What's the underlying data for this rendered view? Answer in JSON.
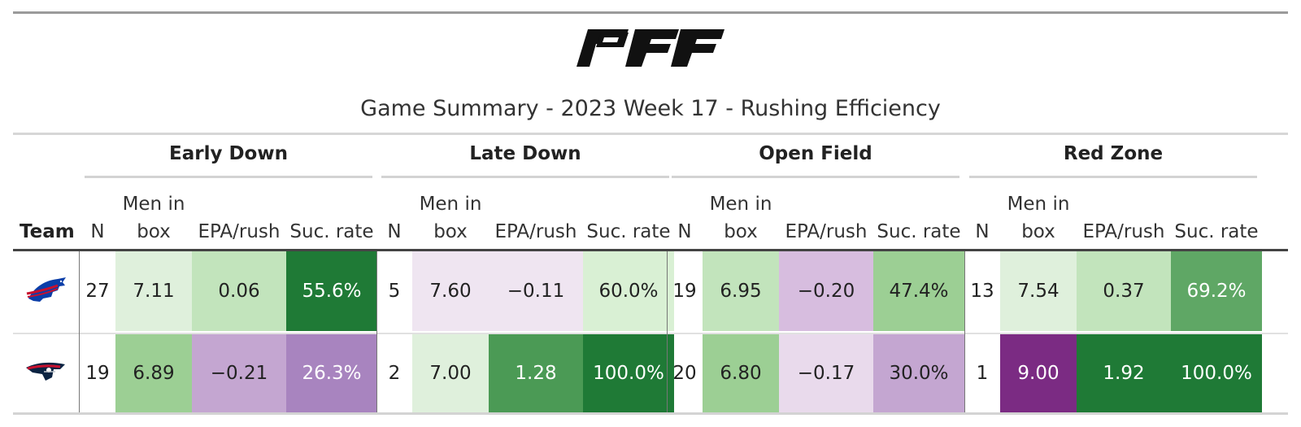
{
  "title": "Game Summary - 2023 Week 17 - Rushing Efficiency",
  "logo": {
    "name": "PFF",
    "color": "#111111"
  },
  "header": {
    "team_label": "Team",
    "groups": [
      "Early Down",
      "Late Down",
      "Open Field",
      "Red Zone"
    ],
    "columns": {
      "n": "N",
      "men_in_box_line1": "Men in",
      "men_in_box_line2": "box",
      "epa": "EPA/rush",
      "success": "Suc. rate"
    }
  },
  "rows": [
    {
      "team_logo": "buffalo-bills-logo-icon",
      "values": [
        [
          "27",
          "7.11",
          "0.06",
          "55.6%"
        ],
        [
          "5",
          "7.60",
          "−0.11",
          "60.0%"
        ],
        [
          "19",
          "6.95",
          "−0.20",
          "47.4%"
        ],
        [
          "13",
          "7.54",
          "0.37",
          "69.2%"
        ]
      ],
      "colors": [
        [
          "#dff0dc",
          "#c2e4bc",
          "#1f7a36"
        ],
        [
          "#efe5f1",
          "#efe5f1",
          "#d9f0d4"
        ],
        [
          "#c2e4bc",
          "#d7bddf",
          "#9ccf94"
        ],
        [
          "#dff0dc",
          "#c2e4bc",
          "#5fa765"
        ]
      ]
    },
    {
      "team_logo": "new-england-patriots-logo-icon",
      "values": [
        [
          "19",
          "6.89",
          "−0.21",
          "26.3%"
        ],
        [
          "2",
          "7.00",
          "1.28",
          "100.0%"
        ],
        [
          "20",
          "6.80",
          "−0.17",
          "30.0%"
        ],
        [
          "1",
          "9.00",
          "1.92",
          "100.0%"
        ]
      ],
      "colors": [
        [
          "#9ccf94",
          "#c4a6d1",
          "#a884bf"
        ],
        [
          "#dff0dc",
          "#4b9a55",
          "#1f7a36"
        ],
        [
          "#9ccf94",
          "#e9daec",
          "#c4a6d1"
        ],
        [
          "#7b2b83",
          "#1f7a36",
          "#1f7a36"
        ]
      ]
    }
  ]
}
